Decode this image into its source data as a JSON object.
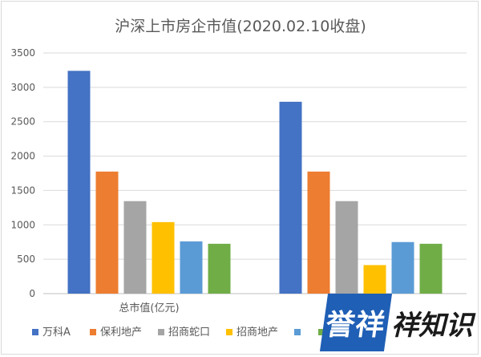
{
  "chart_data": {
    "type": "bar",
    "title": "沪深上市房企市值(2020.02.10收盘)",
    "categories": [
      "总市值(亿元)",
      ""
    ],
    "series": [
      {
        "name": "万科A",
        "color": "#4472c4",
        "values": [
          3240,
          2790
        ]
      },
      {
        "name": "保利地产",
        "color": "#ed7d31",
        "values": [
          1775,
          1775
        ]
      },
      {
        "name": "招商蛇口",
        "color": "#a5a5a5",
        "values": [
          1345,
          1345
        ]
      },
      {
        "name": "招商地产",
        "color": "#ffc000",
        "values": [
          1040,
          415
        ]
      },
      {
        "name": "",
        "color": "#5b9bd5",
        "values": [
          760,
          750
        ]
      },
      {
        "name": "",
        "color": "#70ad47",
        "values": [
          725,
          725
        ]
      }
    ],
    "ylim": [
      0,
      3500
    ],
    "yticks": [
      0,
      500,
      1000,
      1500,
      2000,
      2500,
      3000,
      3500
    ],
    "grid": true,
    "legend_position": "bottom"
  },
  "watermark": {
    "box_text": "誉祥",
    "rest_text": "祥知识"
  }
}
